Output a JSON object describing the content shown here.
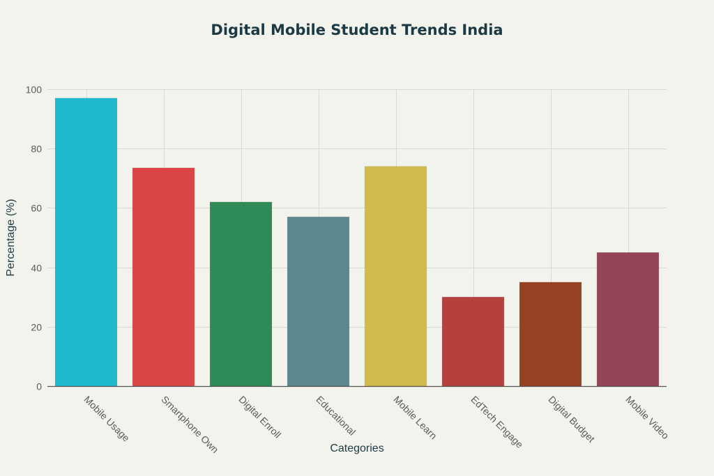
{
  "chart_data": {
    "type": "bar",
    "title": "Digital Mobile Student Trends India",
    "xlabel": "Categories",
    "ylabel": "Percentage (%)",
    "ylim": [
      0,
      100
    ],
    "yticks": [
      0,
      20,
      40,
      60,
      80,
      100
    ],
    "grid": true,
    "legend": "none",
    "categories": [
      "Mobile Usage",
      "Smartphone Own",
      "Digital Enroll",
      "Educational",
      "Mobile Learn",
      "EdTech Engage",
      "Digital Budget",
      "Mobile Video"
    ],
    "values": [
      97,
      73.5,
      62,
      57,
      74,
      30,
      35,
      45
    ],
    "colors": [
      "#1fb8cd",
      "#db4545",
      "#2e8b57",
      "#5d878f",
      "#d2ba4c",
      "#b4413c",
      "#964325",
      "#944454"
    ]
  }
}
